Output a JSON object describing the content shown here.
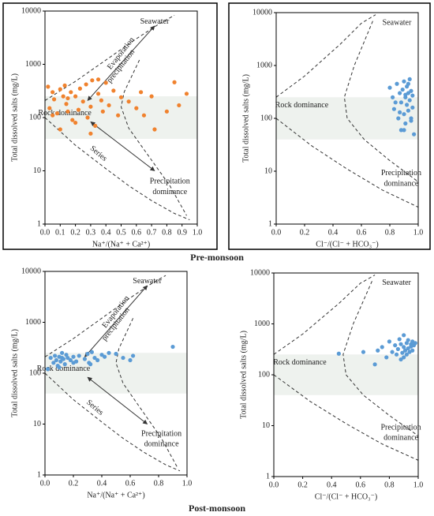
{
  "chart_data": [
    {
      "type": "scatter",
      "y_label": "Total dissolved salts (mg/L)",
      "x_label": "Na⁺/(Na⁺ + Ca²⁺)",
      "log_y": true,
      "color": "#f0822e",
      "xlim": [
        0,
        1
      ],
      "ylim": [
        1,
        10000
      ],
      "xticks": [
        {
          "value": 0,
          "label": "0.0"
        },
        0.1,
        0.2,
        0.3,
        0.4,
        0.5,
        0.6,
        0.7,
        0.8,
        0.9,
        {
          "value": 1,
          "label": "1.0"
        }
      ],
      "yticks": [
        1,
        10,
        100,
        1000,
        10000
      ],
      "annotations": [
        "Seawater",
        "Evaporation",
        "precipitation",
        "Rock dominance",
        "Series",
        "Precipitation",
        "dominance"
      ],
      "x": [
        0.02,
        0.03,
        0.05,
        0.06,
        0.08,
        0.1,
        0.12,
        0.13,
        0.14,
        0.15,
        0.17,
        0.18,
        0.2,
        0.22,
        0.23,
        0.25,
        0.27,
        0.28,
        0.3,
        0.31,
        0.33,
        0.35,
        0.37,
        0.38,
        0.4,
        0.42,
        0.45,
        0.48,
        0.5,
        0.55,
        0.6,
        0.63,
        0.65,
        0.7,
        0.72,
        0.8,
        0.85,
        0.88,
        0.93,
        0.1,
        0.2,
        0.3,
        0.15,
        0.05,
        0.35
      ],
      "y": [
        380,
        150,
        300,
        220,
        120,
        340,
        250,
        400,
        180,
        130,
        300,
        90,
        250,
        140,
        350,
        200,
        420,
        100,
        160,
        500,
        70,
        280,
        210,
        130,
        450,
        170,
        320,
        110,
        240,
        200,
        150,
        300,
        110,
        250,
        60,
        130,
        460,
        170,
        280,
        60,
        80,
        50,
        230,
        110,
        520
      ]
    },
    {
      "type": "scatter",
      "y_label": "Total dissolved salts (mg/L)",
      "x_label": "Cl⁻/(Cl⁻ + HCO₃⁻)",
      "log_y": true,
      "color": "#5b9bd5",
      "xlim": [
        0,
        1
      ],
      "ylim": [
        1,
        10000
      ],
      "xticks": [
        {
          "value": 0,
          "label": "0.0"
        },
        0.2,
        0.4,
        0.6,
        0.8,
        {
          "value": 1,
          "label": "1.0"
        }
      ],
      "yticks": [
        1,
        10,
        100,
        1000,
        10000
      ],
      "annotations": [
        "Seawater",
        "Rock dominance",
        "Precipitation",
        "dominance"
      ],
      "x": [
        0.8,
        0.82,
        0.83,
        0.85,
        0.86,
        0.87,
        0.88,
        0.88,
        0.89,
        0.9,
        0.9,
        0.91,
        0.91,
        0.92,
        0.92,
        0.93,
        0.93,
        0.94,
        0.94,
        0.95,
        0.95,
        0.96,
        0.96,
        0.97,
        0.84,
        0.9,
        0.93,
        0.87,
        0.95,
        0.91
      ],
      "y": [
        380,
        250,
        150,
        450,
        100,
        300,
        200,
        60,
        350,
        120,
        500,
        250,
        80,
        180,
        400,
        300,
        140,
        220,
        550,
        90,
        330,
        270,
        160,
        50,
        200,
        60,
        450,
        130,
        100,
        280
      ]
    },
    {
      "type": "scatter",
      "y_label": "Total dissolved salts (mg/L)",
      "x_label": "Na⁺/(Na⁺ + Ca²⁺)",
      "log_y": true,
      "color": "#5b9bd5",
      "xlim": [
        0,
        1
      ],
      "ylim": [
        1,
        10000
      ],
      "xticks": [
        {
          "value": 0,
          "label": "0.0"
        },
        0.2,
        0.4,
        0.6,
        0.8,
        {
          "value": 1,
          "label": "1.0"
        }
      ],
      "yticks": [
        1,
        10,
        100,
        1000,
        10000
      ],
      "annotations": [
        "Seawater",
        "Evaporation",
        "precipitation",
        "Rock dominance",
        "Series",
        "Precipitation",
        "dominance"
      ],
      "x": [
        0.02,
        0.04,
        0.06,
        0.07,
        0.08,
        0.09,
        0.1,
        0.11,
        0.12,
        0.13,
        0.14,
        0.15,
        0.16,
        0.18,
        0.2,
        0.22,
        0.24,
        0.28,
        0.3,
        0.31,
        0.33,
        0.35,
        0.37,
        0.4,
        0.42,
        0.45,
        0.5,
        0.55,
        0.6,
        0.62,
        0.9,
        0.1,
        0.2,
        0.32,
        0.12
      ],
      "y": [
        120,
        200,
        160,
        220,
        180,
        140,
        210,
        170,
        250,
        190,
        150,
        230,
        200,
        180,
        210,
        170,
        220,
        190,
        240,
        160,
        260,
        200,
        180,
        230,
        210,
        250,
        240,
        200,
        180,
        220,
        330,
        130,
        160,
        150,
        200
      ]
    },
    {
      "type": "scatter",
      "y_label": "Total dissolved salts (mg/L)",
      "x_label": "Cl⁻/(Cl⁻ + HCO₃⁻)",
      "log_y": true,
      "color": "#5b9bd5",
      "xlim": [
        0,
        1
      ],
      "ylim": [
        1,
        10000
      ],
      "xticks": [
        {
          "value": 0,
          "label": "0.0"
        },
        0.2,
        0.4,
        0.6,
        0.8,
        {
          "value": 1,
          "label": "1.0"
        }
      ],
      "yticks": [
        1,
        10,
        100,
        1000,
        10000
      ],
      "annotations": [
        "Seawater",
        "Rock dominance",
        "Precipitation",
        "dominance"
      ],
      "x": [
        0.45,
        0.62,
        0.7,
        0.72,
        0.75,
        0.78,
        0.8,
        0.82,
        0.84,
        0.85,
        0.86,
        0.87,
        0.88,
        0.88,
        0.89,
        0.9,
        0.9,
        0.91,
        0.92,
        0.92,
        0.93,
        0.93,
        0.94,
        0.95,
        0.95,
        0.96,
        0.96,
        0.97,
        0.98,
        0.9
      ],
      "y": [
        260,
        280,
        160,
        300,
        350,
        220,
        450,
        280,
        380,
        250,
        320,
        500,
        200,
        400,
        270,
        350,
        600,
        300,
        420,
        250,
        330,
        480,
        280,
        400,
        360,
        450,
        300,
        380,
        420,
        220
      ]
    }
  ],
  "panel_labels": [
    "Pre-monsoon",
    "Post-monsoon"
  ]
}
